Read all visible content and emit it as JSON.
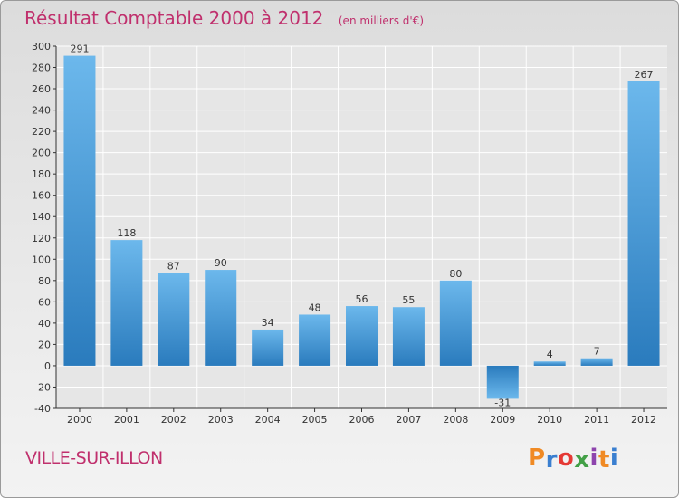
{
  "header": {
    "title": "Résultat Comptable 2000 à 2012",
    "subtitle": "(en milliers d'€)"
  },
  "commune": "VILLE-SUR-ILLON",
  "logo": {
    "letters": [
      "P",
      "r",
      "o",
      "x",
      "i",
      "t",
      "i"
    ],
    "colors": [
      "#f08a24",
      "#3a7fd0",
      "#e53935",
      "#43a047",
      "#8e44ad",
      "#f08a24",
      "#3a7fd0"
    ]
  },
  "colors": {
    "bar_light": "#6cb8ec",
    "bar_dark": "#2a7bbd",
    "title": "#c0306d",
    "grid": "#ffffff"
  },
  "chart_data": {
    "type": "bar",
    "title": "Résultat Comptable 2000 à 2012",
    "categories": [
      "2000",
      "2001",
      "2002",
      "2003",
      "2004",
      "2005",
      "2006",
      "2007",
      "2008",
      "2009",
      "2010",
      "2011",
      "2012"
    ],
    "values": [
      291,
      118,
      87,
      90,
      34,
      48,
      56,
      55,
      80,
      -31,
      4,
      7,
      267
    ],
    "ylim": [
      -40,
      300
    ],
    "yticks": [
      300,
      280,
      260,
      240,
      220,
      200,
      180,
      160,
      140,
      120,
      100,
      80,
      60,
      40,
      20,
      0,
      -20,
      -40
    ],
    "grid": true
  }
}
